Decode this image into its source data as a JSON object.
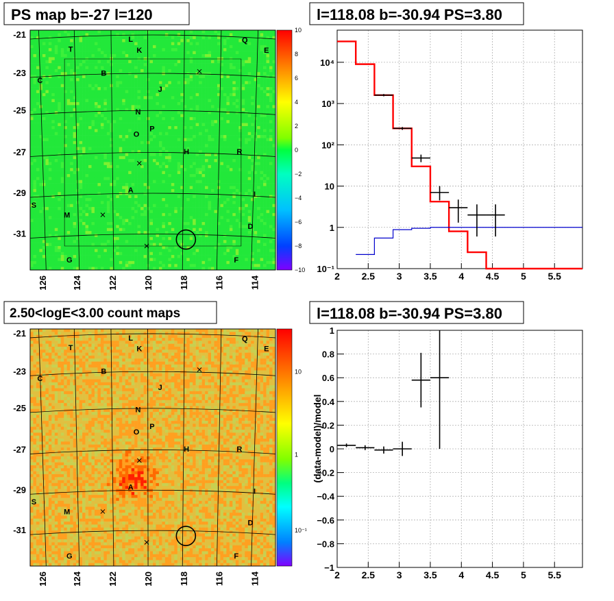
{
  "colors": {
    "frame": "#000000",
    "grid": "#b0b0b0",
    "model_red": "#ff0000",
    "model_blue": "#0000cc",
    "data_black": "#000000"
  },
  "panels": {
    "tl": {
      "title": "PS map b=-27 l=120",
      "type": "heatmap",
      "x_ticks": [
        "126",
        "124",
        "122",
        "120",
        "118",
        "116",
        "114"
      ],
      "y_ticks": [
        "-21",
        "-23",
        "-25",
        "-27",
        "-29",
        "-31"
      ],
      "palette_ticks": [
        "10",
        "8",
        "6",
        "4",
        "2",
        "0",
        "−2",
        "−4",
        "−6",
        "−8",
        "−10"
      ],
      "source_letters": [
        "T",
        "L",
        "K",
        "Q",
        "E",
        "C",
        "B",
        "J",
        "N",
        "O",
        "P",
        "H",
        "R",
        "A",
        "S",
        "M",
        "I",
        "D",
        "G",
        "F"
      ]
    },
    "bl": {
      "title": "2.50<logE<3.00 count maps",
      "type": "heatmap",
      "x_ticks": [
        "126",
        "124",
        "122",
        "120",
        "118",
        "116",
        "114"
      ],
      "y_ticks": [
        "-21",
        "-23",
        "-25",
        "-27",
        "-29",
        "-31"
      ],
      "palette_ticks": [
        "10",
        "1",
        "10⁻¹"
      ],
      "source_letters": [
        "T",
        "L",
        "K",
        "Q",
        "E",
        "C",
        "B",
        "J",
        "N",
        "O",
        "P",
        "H",
        "R",
        "A",
        "S",
        "M",
        "I",
        "D",
        "G",
        "F"
      ]
    },
    "tr": {
      "title": "l=118.08 b=-30.94 PS=3.80",
      "type": "line",
      "x_ticks": [
        "2",
        "2.5",
        "3",
        "3.5",
        "4",
        "4.5",
        "5",
        "5.5"
      ],
      "y_ticks": [
        "10⁻¹",
        "1",
        "10",
        "10²",
        "10³",
        "10⁴"
      ],
      "xlim": [
        2,
        5.95
      ],
      "log_y": true,
      "ylim": [
        0.1,
        60000
      ]
    },
    "br": {
      "title": "l=118.08 b=-30.94 PS=3.80",
      "type": "scatter",
      "ylabel": "(data-model)/model",
      "x_ticks": [
        "2",
        "2.5",
        "3",
        "3.5",
        "4",
        "4.5",
        "5",
        "5.5"
      ],
      "y_ticks": [
        "1",
        "0.8",
        "0.6",
        "0.4",
        "0.2",
        "0",
        "−0.2",
        "−0.4",
        "−0.6",
        "−0.8",
        "−1"
      ],
      "xlim": [
        2,
        5.95
      ],
      "ylim": [
        -1,
        1
      ]
    }
  },
  "chart_data": [
    {
      "type": "line",
      "panel": "tr",
      "series": [
        {
          "bin_edges": [
            2,
            2.3,
            2.6,
            2.9,
            3.2,
            3.5,
            3.8,
            4.1,
            4.4,
            5.95
          ],
          "values": [
            32000,
            9000,
            1600,
            250,
            30,
            4.2,
            0.8,
            0.25,
            0.1
          ]
        },
        {
          "bin_edges": [
            2.3,
            2.6,
            2.9,
            3.2,
            3.5,
            5.95
          ],
          "values": [
            0.22,
            0.55,
            0.88,
            0.95,
            1.0
          ]
        }
      ],
      "points": [
        {
          "x": 2.75,
          "y": 1600,
          "xerr": 0.15,
          "ylo": 1500,
          "yhi": 1700
        },
        {
          "x": 3.05,
          "y": 250,
          "xerr": 0.15,
          "ylo": 230,
          "yhi": 270
        },
        {
          "x": 3.35,
          "y": 48,
          "xerr": 0.15,
          "ylo": 38,
          "yhi": 58
        },
        {
          "x": 3.65,
          "y": 7,
          "xerr": 0.15,
          "ylo": 4.5,
          "yhi": 10
        },
        {
          "x": 3.95,
          "y": 3,
          "xerr": 0.15,
          "ylo": 1.3,
          "yhi": 4.7
        },
        {
          "x": 4.25,
          "y": 2,
          "xerr": 0.15,
          "ylo": 0.6,
          "yhi": 3.6
        },
        {
          "x": 4.55,
          "y": 2,
          "xerr": 0.15,
          "ylo": 0.6,
          "yhi": 3.6
        }
      ]
    },
    {
      "type": "scatter",
      "panel": "br",
      "points": [
        {
          "x": 2.15,
          "y": 0.03,
          "xerr": 0.15,
          "yerr": 0.015
        },
        {
          "x": 2.45,
          "y": 0.01,
          "xerr": 0.15,
          "yerr": 0.02
        },
        {
          "x": 2.75,
          "y": -0.01,
          "xerr": 0.15,
          "yerr": 0.03
        },
        {
          "x": 3.05,
          "y": 0.0,
          "xerr": 0.15,
          "yerr": 0.06
        },
        {
          "x": 3.35,
          "y": 0.58,
          "xerr": 0.15,
          "yerr": 0.23
        },
        {
          "x": 3.65,
          "y": 0.6,
          "xerr": 0.15,
          "yerr": 0.6
        }
      ]
    }
  ]
}
